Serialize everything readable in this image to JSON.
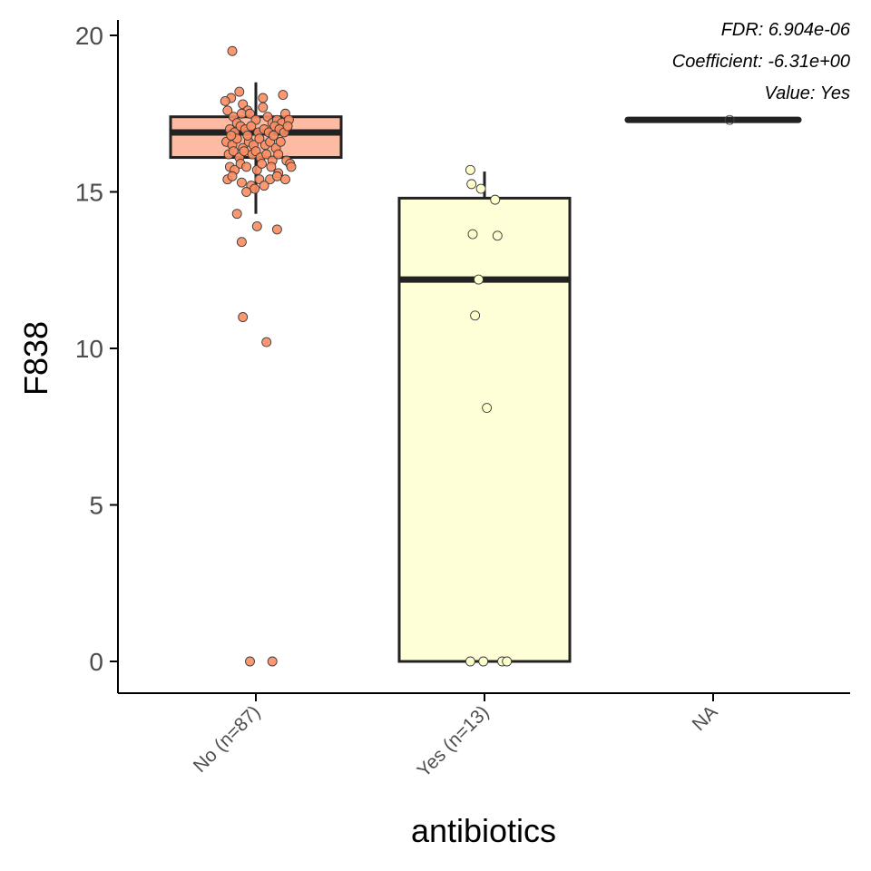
{
  "chart_data": {
    "type": "box",
    "xlabel": "antibiotics",
    "ylabel": "F838",
    "categories": [
      "No (n=87)",
      "Yes (n=13)",
      "NA"
    ],
    "ylim": [
      -1,
      20.7
    ],
    "yticks": [
      0,
      5,
      10,
      15,
      20
    ],
    "grid": false,
    "annotations": [
      "FDR: 6.904e-06",
      "Coefficient: -6.31e+00",
      "Value: Yes"
    ],
    "colors": {
      "No (n=87)": "#FC8D62",
      "Yes (n=13)": "#FFFFCC",
      "NA": "#bbbbbb"
    },
    "boxes": [
      {
        "category": "No (n=87)",
        "q1": 16.1,
        "median": 16.9,
        "q3": 17.4,
        "whisker_low": 14.3,
        "whisker_high": 18.5,
        "fill": "#FDBBA3"
      },
      {
        "category": "Yes (n=13)",
        "q1": 0,
        "median": 12.2,
        "q3": 14.8,
        "whisker_low": 0,
        "whisker_high": 15.65,
        "fill": "#FFFFD7"
      },
      {
        "category": "NA",
        "q1": 17.3,
        "median": 17.3,
        "q3": 17.3,
        "whisker_low": 17.3,
        "whisker_high": 17.3,
        "fill": "#ffffff"
      }
    ],
    "points": [
      {
        "category": "No (n=87)",
        "values": [
          [
            -0.2,
            19.5
          ],
          [
            -0.21,
            18.0
          ],
          [
            -0.26,
            17.9
          ],
          [
            -0.14,
            18.2
          ],
          [
            -0.11,
            17.8
          ],
          [
            -0.07,
            17.6
          ],
          [
            0.06,
            18.0
          ],
          [
            0.23,
            18.1
          ],
          [
            -0.24,
            17.6
          ],
          [
            -0.19,
            17.4
          ],
          [
            -0.16,
            17.2
          ],
          [
            -0.12,
            17.5
          ],
          [
            -0.05,
            17.5
          ],
          [
            0.0,
            17.3
          ],
          [
            0.06,
            17.7
          ],
          [
            0.1,
            17.4
          ],
          [
            0.14,
            17.2
          ],
          [
            0.18,
            17.3
          ],
          [
            0.22,
            17.2
          ],
          [
            0.25,
            17.5
          ],
          [
            0.28,
            17.3
          ],
          [
            -0.22,
            17.0
          ],
          [
            -0.18,
            16.9
          ],
          [
            -0.13,
            17.1
          ],
          [
            -0.09,
            17.0
          ],
          [
            -0.04,
            17.1
          ],
          [
            0.02,
            16.9
          ],
          [
            0.07,
            17.0
          ],
          [
            0.11,
            16.9
          ],
          [
            0.16,
            17.1
          ],
          [
            0.2,
            17.0
          ],
          [
            0.24,
            16.9
          ],
          [
            -0.25,
            16.6
          ],
          [
            -0.2,
            16.5
          ],
          [
            -0.16,
            16.7
          ],
          [
            -0.11,
            16.4
          ],
          [
            -0.06,
            16.6
          ],
          [
            -0.02,
            16.5
          ],
          [
            0.03,
            16.7
          ],
          [
            0.08,
            16.5
          ],
          [
            0.12,
            16.6
          ],
          [
            0.17,
            16.4
          ],
          [
            0.21,
            16.6
          ],
          [
            -0.23,
            16.2
          ],
          [
            -0.19,
            16.3
          ],
          [
            -0.14,
            16.1
          ],
          [
            -0.1,
            16.3
          ],
          [
            -0.03,
            16.2
          ],
          [
            0.0,
            16.3
          ],
          [
            0.04,
            16.1
          ],
          [
            0.09,
            16.2
          ],
          [
            0.14,
            16.0
          ],
          [
            0.19,
            16.2
          ],
          [
            0.26,
            16.0
          ],
          [
            0.29,
            15.9
          ],
          [
            -0.22,
            15.8
          ],
          [
            -0.18,
            15.7
          ],
          [
            -0.13,
            15.9
          ],
          [
            -0.08,
            15.8
          ],
          [
            0.01,
            15.7
          ],
          [
            0.05,
            15.9
          ],
          [
            0.13,
            15.8
          ],
          [
            0.19,
            15.6
          ],
          [
            0.3,
            15.8
          ],
          [
            -0.24,
            15.4
          ],
          [
            -0.2,
            15.5
          ],
          [
            -0.12,
            15.3
          ],
          [
            -0.04,
            15.2
          ],
          [
            0.03,
            15.4
          ],
          [
            0.12,
            15.4
          ],
          [
            0.18,
            15.5
          ],
          [
            0.25,
            15.4
          ],
          [
            -0.08,
            15.0
          ],
          [
            0.07,
            15.2
          ],
          [
            -0.16,
            14.3
          ],
          [
            0.01,
            13.9
          ],
          [
            0.18,
            13.8
          ],
          [
            -0.12,
            13.4
          ],
          [
            -0.11,
            11.0
          ],
          [
            0.09,
            10.2
          ],
          [
            -0.05,
            0.0
          ],
          [
            0.14,
            0.0
          ],
          [
            -0.21,
            16.8
          ],
          [
            0.15,
            16.8
          ],
          [
            -0.07,
            16.8
          ],
          [
            0.27,
            17.1
          ],
          [
            -0.01,
            15.1
          ]
        ]
      },
      {
        "category": "Yes (n=13)",
        "values": [
          [
            -0.12,
            15.7
          ],
          [
            -0.11,
            15.25
          ],
          [
            -0.03,
            15.1
          ],
          [
            0.09,
            14.75
          ],
          [
            -0.1,
            13.65
          ],
          [
            0.11,
            13.6
          ],
          [
            -0.05,
            12.2
          ],
          [
            -0.08,
            11.05
          ],
          [
            0.02,
            8.1
          ],
          [
            -0.12,
            0.0
          ],
          [
            -0.01,
            0.0
          ],
          [
            0.15,
            0.0
          ],
          [
            0.19,
            0.0
          ]
        ]
      },
      {
        "category": "NA",
        "values": [
          [
            0.14,
            17.3
          ]
        ]
      }
    ]
  }
}
